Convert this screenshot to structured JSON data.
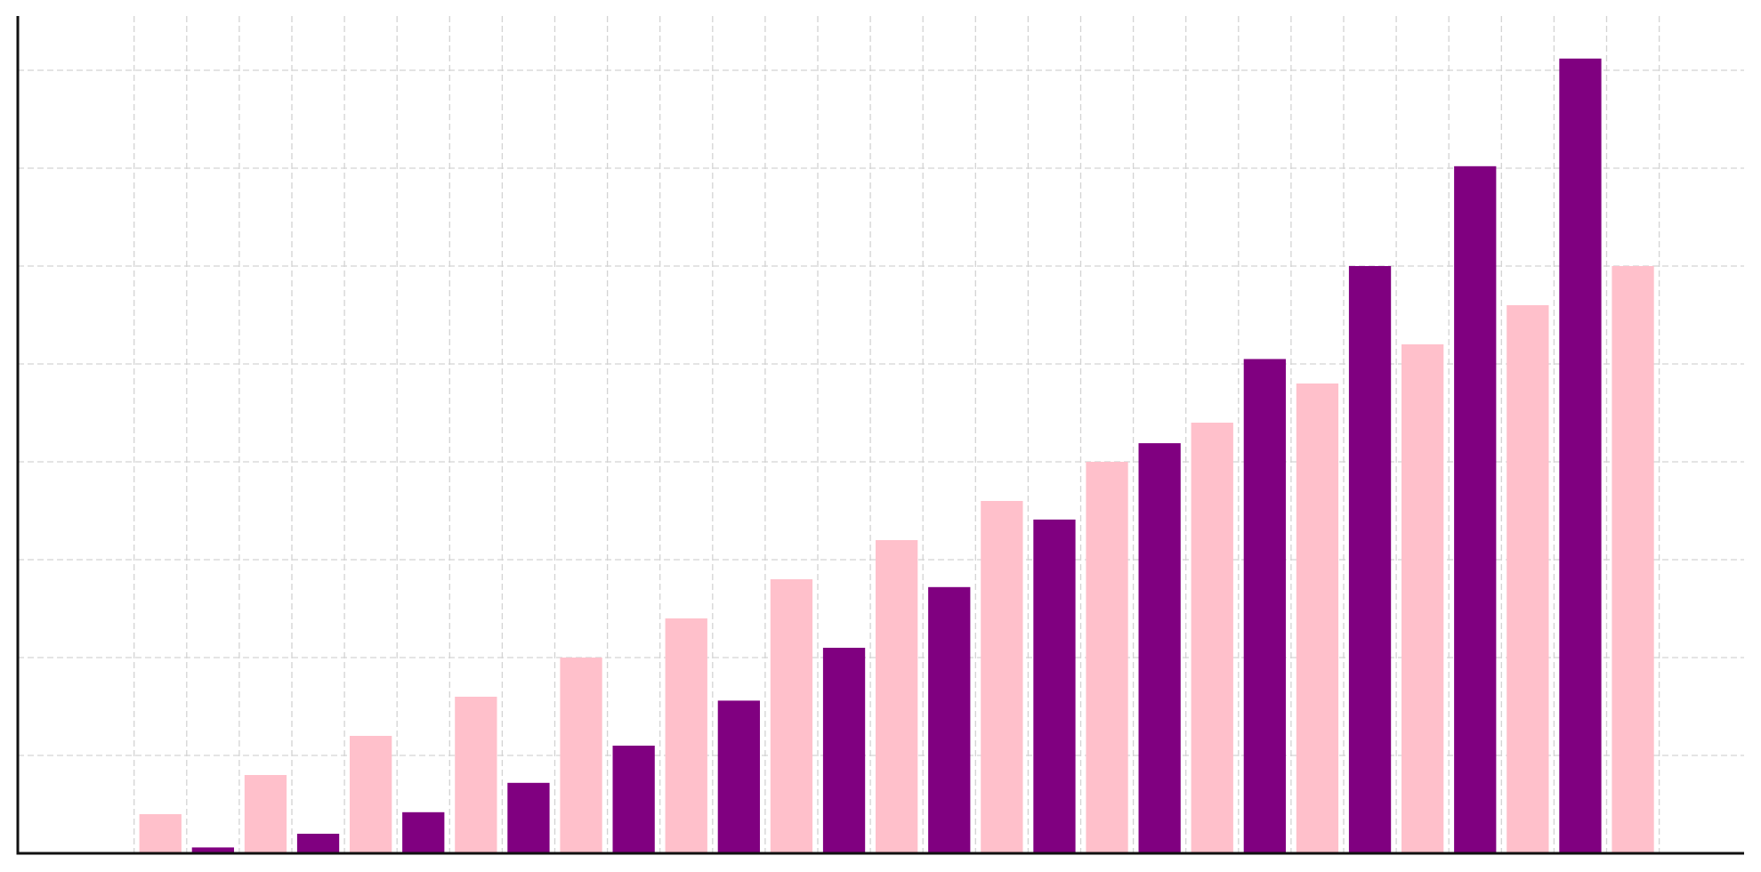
{
  "chart_data": {
    "type": "bar",
    "title": "",
    "xlabel": "",
    "ylabel": "",
    "grid": true,
    "legend": "none",
    "xlim": [
      0,
      32.5
    ],
    "ylim": [
      0,
      85
    ],
    "x_gridlines": [
      2,
      3,
      4,
      5,
      6,
      7,
      8,
      9,
      10,
      11,
      12,
      13,
      14,
      15,
      16,
      17,
      18,
      19,
      20,
      21,
      22,
      23,
      24,
      25,
      26,
      27,
      28,
      29,
      30,
      31
    ],
    "y_gridlines": [
      10,
      20,
      30,
      40,
      50,
      60,
      70,
      80
    ],
    "series": [
      {
        "color": "#ffc0cb",
        "x": [
          2.5,
          4.5,
          6.5,
          8.5,
          10.5,
          12.5,
          14.5,
          16.5,
          18.5,
          20.5,
          22.5,
          24.5,
          26.5,
          28.5,
          30.5
        ],
        "values": [
          4,
          8,
          12,
          16,
          20,
          24,
          28,
          32,
          36,
          40,
          44,
          48,
          52,
          56,
          60
        ]
      },
      {
        "color": "#800080",
        "x": [
          3.5,
          5.5,
          7.5,
          9.5,
          11.5,
          13.5,
          15.5,
          17.5,
          19.5,
          21.5,
          23.5,
          25.5,
          27.5,
          29.5
        ],
        "values": [
          0.6,
          2,
          4.2,
          7.2,
          11,
          15.6,
          21,
          27.2,
          34.1,
          41.9,
          50.5,
          60,
          70.2,
          81.2
        ]
      }
    ]
  }
}
